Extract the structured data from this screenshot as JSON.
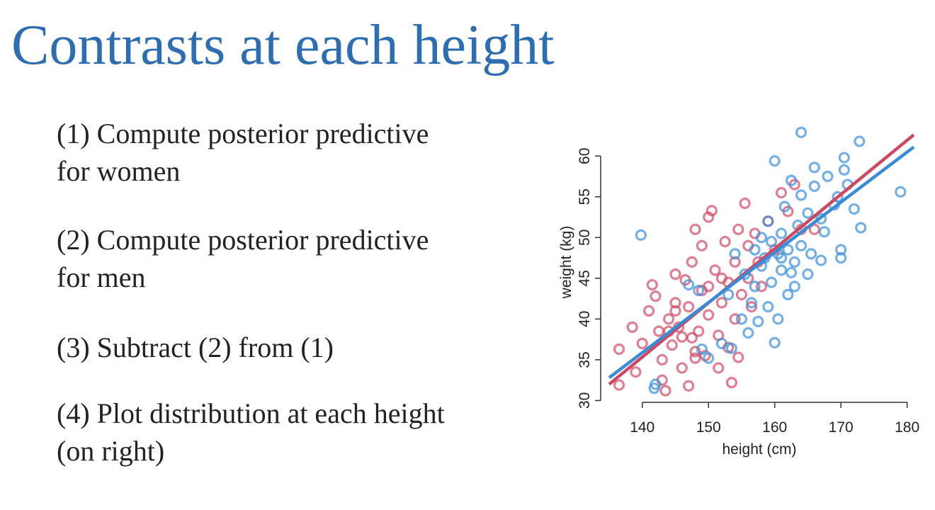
{
  "title": "Contrasts at each height",
  "items": [
    [
      "(1) Compute posterior predictive",
      "for women"
    ],
    [
      "(2) Compute posterior predictive",
      "for men"
    ],
    [
      "(3) Subtract (2) from (1)"
    ],
    [
      "(4) Plot distribution at each height",
      "(on right)"
    ]
  ],
  "chart_data": {
    "type": "scatter",
    "xlabel": "height (cm)",
    "ylabel": "weight (kg)",
    "xlim": [
      135,
      181
    ],
    "ylim": [
      28.3,
      63.5
    ],
    "xticks": [
      140,
      150,
      160,
      170,
      180
    ],
    "yticks": [
      30,
      35,
      40,
      45,
      50,
      55,
      60
    ],
    "series": [
      {
        "type": "scatter",
        "color": "#d04a66",
        "x": [
          136.5,
          136.5,
          138.5,
          139,
          140,
          141,
          141.5,
          142,
          142.5,
          143,
          143,
          143.5,
          144,
          144.5,
          145,
          145,
          145.5,
          146,
          146,
          146.5,
          147,
          147,
          147.5,
          148,
          148,
          148.5,
          149,
          149,
          149.5,
          150,
          150,
          150.5,
          151,
          151.5,
          151.5,
          152,
          152.5,
          153,
          153,
          153.5,
          154,
          154,
          154.5,
          155,
          155.5,
          156,
          156,
          156.5,
          157,
          157.5,
          158,
          159,
          160,
          161,
          162,
          163,
          164,
          166,
          148,
          147.5,
          152,
          150,
          145,
          144,
          154.5
        ],
        "values": [
          36.3,
          31.9,
          39,
          33.5,
          37,
          41,
          44.2,
          42.8,
          38.5,
          35,
          32.5,
          31.2,
          40,
          36.8,
          42,
          45.5,
          39,
          34,
          37.8,
          44.8,
          41.5,
          31.8,
          47,
          36,
          51,
          38.5,
          49,
          43.5,
          35.5,
          40.5,
          52.5,
          53.3,
          46,
          38,
          34,
          42,
          49.5,
          44.5,
          36.5,
          32.2,
          40,
          47,
          51,
          43,
          54.2,
          45,
          49,
          41.5,
          50.5,
          47,
          44,
          52,
          48.5,
          55.5,
          53.2,
          56.5,
          51,
          51,
          35.2,
          37.7,
          45,
          44,
          41,
          38.5,
          35.3
        ]
      },
      {
        "type": "scatter",
        "color": "#3a8fd8",
        "x": [
          139.8,
          141.8,
          142,
          147,
          148.5,
          149,
          150,
          152,
          153.5,
          153,
          154,
          155,
          155.5,
          156,
          156.5,
          157,
          157.5,
          158,
          158,
          158.5,
          159,
          159,
          159.5,
          160,
          160,
          160.5,
          160.5,
          161,
          161,
          161.5,
          162,
          162,
          162.5,
          163,
          163,
          163.5,
          164,
          164,
          164,
          165,
          165,
          165.5,
          166,
          166,
          167,
          167,
          167.5,
          168,
          169,
          169.5,
          170,
          170,
          170.5,
          170.5,
          171,
          172,
          172.8,
          173,
          179,
          157,
          159.5,
          161,
          162.5
        ],
        "values": [
          50.3,
          31.5,
          32,
          44.2,
          43.5,
          36.3,
          35.2,
          37,
          36.4,
          43,
          48,
          40,
          45.5,
          38.3,
          42,
          44,
          39.7,
          46.5,
          50,
          47.5,
          41.5,
          52,
          44.5,
          37.1,
          59.4,
          40,
          48,
          46,
          50.5,
          53.8,
          43,
          48.5,
          57,
          44,
          47,
          51.5,
          55.2,
          49,
          62.9,
          45.5,
          53,
          48,
          56.3,
          58.6,
          47.2,
          52.3,
          50.7,
          57.5,
          54,
          55,
          47.5,
          48.5,
          59.8,
          58.3,
          56.5,
          53.5,
          61.8,
          51.2,
          55.6,
          48.5,
          49.5,
          47.5,
          45.7
        ]
      },
      {
        "type": "line",
        "color": "#c94a62",
        "x": [
          135,
          181
        ],
        "values": [
          32.0,
          62.6
        ]
      },
      {
        "type": "line",
        "color": "#3b8ad6",
        "x": [
          135,
          181
        ],
        "values": [
          32.8,
          61.1
        ]
      }
    ]
  }
}
